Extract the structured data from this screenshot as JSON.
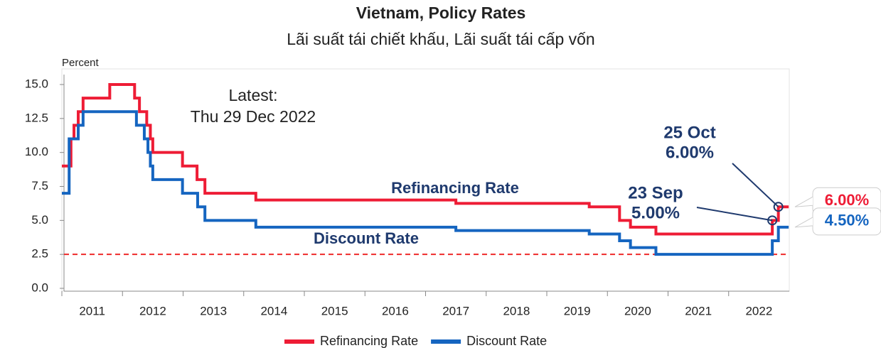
{
  "chart_data": {
    "type": "step",
    "title": "Vietnam, Policy Rates",
    "subtitle": "Lãi suất tái chiết khấu, Lãi suất tái cấp vốn",
    "y_label": "Percent",
    "xlim": [
      2011,
      2023
    ],
    "xticks": [
      2011,
      2012,
      2013,
      2014,
      2015,
      2016,
      2017,
      2018,
      2019,
      2020,
      2021,
      2022
    ],
    "ylim": [
      0,
      15
    ],
    "yticks": [
      {
        "value": 0,
        "label": "0.0"
      },
      {
        "value": 2.5,
        "label": "2.5"
      },
      {
        "value": 5,
        "label": "5.0"
      },
      {
        "value": 7.5,
        "label": "7.5"
      },
      {
        "value": 10,
        "label": "10.0"
      },
      {
        "value": 12.5,
        "label": "12.5"
      },
      {
        "value": 15,
        "label": "15.0"
      }
    ],
    "reference_line": {
      "value": 2.5,
      "color": "#ee2a2a"
    },
    "series": [
      {
        "name": "Refinancing Rate",
        "color": "#ee1c35",
        "x": [
          2011.0,
          2011.15,
          2011.2,
          2011.27,
          2011.35,
          2011.79,
          2012.2,
          2012.28,
          2012.4,
          2012.46,
          2012.5,
          2012.99,
          2013.23,
          2013.36,
          2014.2,
          2017.5,
          2019.7,
          2020.2,
          2020.38,
          2020.8,
          2022.72,
          2022.82,
          2022.99
        ],
        "values": [
          9,
          11,
          12,
          13,
          14,
          15,
          14,
          13,
          12,
          11,
          10,
          9,
          8,
          7,
          6.5,
          6.25,
          6,
          5,
          4.5,
          4,
          5,
          6,
          6
        ],
        "line_label": "Refinancing Rate",
        "end_label": "6.00%"
      },
      {
        "name": "Discount Rate",
        "color": "#1565c0",
        "x": [
          2011.0,
          2011.12,
          2011.27,
          2011.35,
          2012.23,
          2012.36,
          2012.42,
          2012.46,
          2012.5,
          2012.99,
          2013.24,
          2013.36,
          2014.2,
          2017.5,
          2019.7,
          2020.2,
          2020.38,
          2020.8,
          2022.72,
          2022.82,
          2022.99
        ],
        "values": [
          7,
          11,
          12,
          13,
          12,
          11,
          10,
          9,
          8,
          7,
          6,
          5,
          4.5,
          4.25,
          4,
          3.5,
          3,
          2.5,
          3.5,
          4.5,
          4.5
        ],
        "line_label": "Discount Rate",
        "end_label": "4.50%"
      }
    ],
    "annotations": [
      {
        "lines": [
          "Latest:",
          "Thu 29 Dec 2022"
        ]
      },
      {
        "lines": [
          "25 Oct",
          "6.00%"
        ]
      },
      {
        "lines": [
          "23 Sep",
          "5.00%"
        ]
      }
    ]
  }
}
